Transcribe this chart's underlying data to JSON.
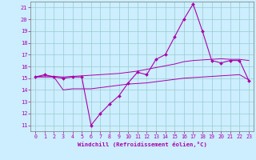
{
  "xlabel": "Windchill (Refroidissement éolien,°C)",
  "bg_color": "#cceeff",
  "line_color": "#aa00aa",
  "grid_color": "#99cccc",
  "ylim": [
    10.5,
    21.5
  ],
  "xlim": [
    -0.5,
    23.5
  ],
  "yticks": [
    11,
    12,
    13,
    14,
    15,
    16,
    17,
    18,
    19,
    20,
    21
  ],
  "xticks": [
    0,
    1,
    2,
    3,
    4,
    5,
    6,
    7,
    8,
    9,
    10,
    11,
    12,
    13,
    14,
    15,
    16,
    17,
    18,
    19,
    20,
    21,
    22,
    23
  ],
  "main_x": [
    0,
    1,
    2,
    3,
    4,
    5,
    6,
    7,
    8,
    9,
    10,
    11,
    12,
    13,
    14,
    15,
    16,
    17,
    18,
    19,
    20,
    21,
    22,
    23
  ],
  "main_y": [
    15.1,
    15.3,
    15.1,
    15.0,
    15.1,
    15.1,
    11.0,
    12.0,
    12.8,
    13.5,
    14.6,
    15.5,
    15.3,
    16.6,
    17.0,
    18.5,
    20.0,
    21.3,
    19.0,
    16.5,
    16.3,
    16.5,
    16.5,
    14.8
  ],
  "trend1_x": [
    0,
    1,
    2,
    3,
    4,
    5,
    6,
    7,
    8,
    9,
    10,
    11,
    12,
    13,
    14,
    15,
    16,
    17,
    18,
    19,
    20,
    21,
    22,
    23
  ],
  "trend1_y": [
    15.1,
    15.1,
    15.1,
    14.0,
    14.1,
    14.1,
    14.1,
    14.2,
    14.3,
    14.4,
    14.5,
    14.55,
    14.6,
    14.7,
    14.8,
    14.9,
    15.0,
    15.05,
    15.1,
    15.15,
    15.2,
    15.25,
    15.3,
    14.85
  ],
  "trend2_x": [
    0,
    1,
    2,
    3,
    4,
    5,
    6,
    7,
    8,
    9,
    10,
    11,
    12,
    13,
    14,
    15,
    16,
    17,
    18,
    19,
    20,
    21,
    22,
    23
  ],
  "trend2_y": [
    15.1,
    15.2,
    15.15,
    15.1,
    15.15,
    15.2,
    15.25,
    15.3,
    15.35,
    15.4,
    15.5,
    15.6,
    15.75,
    15.9,
    16.05,
    16.2,
    16.4,
    16.5,
    16.55,
    16.6,
    16.65,
    16.6,
    16.6,
    16.5
  ]
}
